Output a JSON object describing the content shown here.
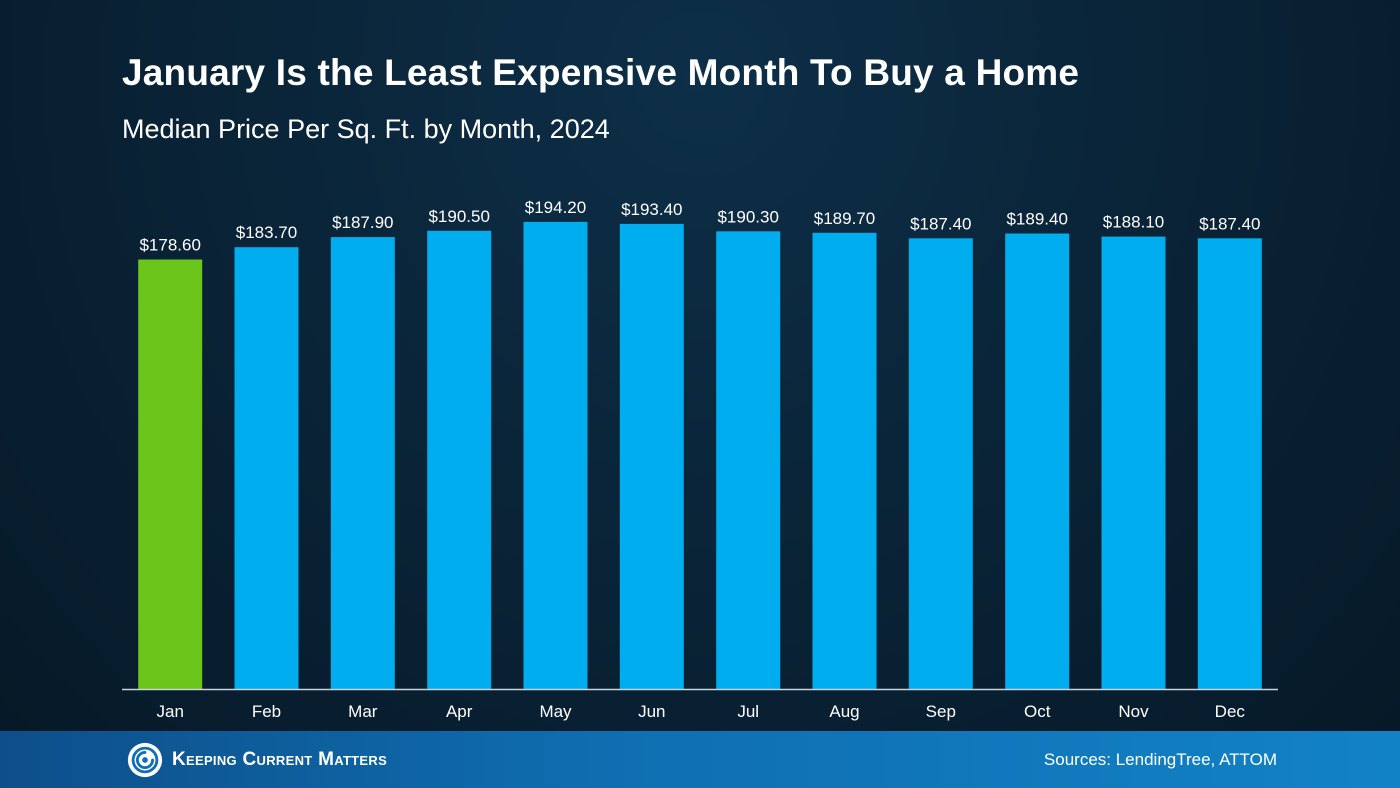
{
  "colors": {
    "highlight": "#6cc51a",
    "bar": "#00adef",
    "axis": "#c9d3dc"
  },
  "footer": {
    "logo_icon": "kcm-swirl-logo",
    "logo_text": "Keeping Current Matters",
    "sources": "Sources: LendingTree, ATTOM"
  },
  "chart_data": {
    "type": "bar",
    "title": "January Is the Least Expensive Month To Buy a Home",
    "subtitle": "Median Price Per Sq. Ft. by Month, 2024",
    "categories": [
      "Jan",
      "Feb",
      "Mar",
      "Apr",
      "May",
      "Jun",
      "Jul",
      "Aug",
      "Sep",
      "Oct",
      "Nov",
      "Dec"
    ],
    "values": [
      178.6,
      183.7,
      187.9,
      190.5,
      194.2,
      193.4,
      190.3,
      189.7,
      187.4,
      189.4,
      188.1,
      187.4
    ],
    "data_labels": [
      "$178.60",
      "$183.70",
      "$187.90",
      "$190.50",
      "$194.20",
      "$193.40",
      "$190.30",
      "$189.70",
      "$187.40",
      "$189.40",
      "$188.10",
      "$187.40"
    ],
    "highlight_index": 0,
    "xlabel": "",
    "ylabel": "",
    "ylim": [
      0,
      200
    ],
    "grid": false,
    "legend": "none"
  }
}
